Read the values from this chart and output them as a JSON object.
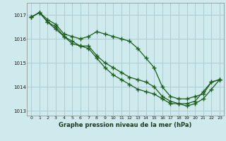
{
  "background_color": "#ceeaed",
  "grid_color": "#aacdd2",
  "line_color": "#1a5c1a",
  "xlabel": "Graphe pression niveau de la mer (hPa)",
  "ylim": [
    1012.8,
    1017.5
  ],
  "xlim": [
    -0.5,
    23.5
  ],
  "yticks": [
    1013,
    1014,
    1015,
    1016,
    1017
  ],
  "xticks": [
    0,
    1,
    2,
    3,
    4,
    5,
    6,
    7,
    8,
    9,
    10,
    11,
    12,
    13,
    14,
    15,
    16,
    17,
    18,
    19,
    20,
    21,
    22,
    23
  ],
  "series": [
    [
      1016.9,
      1017.1,
      1016.8,
      1016.6,
      1016.2,
      1016.1,
      1016.0,
      1016.1,
      1016.3,
      1016.2,
      1016.1,
      1016.0,
      1015.9,
      1015.6,
      1015.2,
      1014.8,
      1014.0,
      1013.6,
      1013.5,
      1013.5,
      1013.6,
      1013.7,
      1014.2,
      1014.3
    ],
    [
      1016.9,
      1017.1,
      1016.7,
      1016.5,
      1016.1,
      1015.9,
      1015.7,
      1015.7,
      1015.3,
      1015.0,
      1014.8,
      1014.6,
      1014.4,
      1014.3,
      1014.2,
      1014.0,
      1013.6,
      1013.4,
      1013.3,
      1013.3,
      1013.4,
      1013.8,
      1014.2,
      1014.3
    ],
    [
      1016.9,
      1017.1,
      1016.7,
      1016.4,
      1016.1,
      1015.8,
      1015.7,
      1015.6,
      1015.2,
      1014.8,
      1014.5,
      1014.3,
      1014.1,
      1013.9,
      1013.8,
      1013.7,
      1013.5,
      1013.3,
      1013.3,
      1013.2,
      1013.3,
      1013.5,
      1013.9,
      1014.3
    ]
  ]
}
